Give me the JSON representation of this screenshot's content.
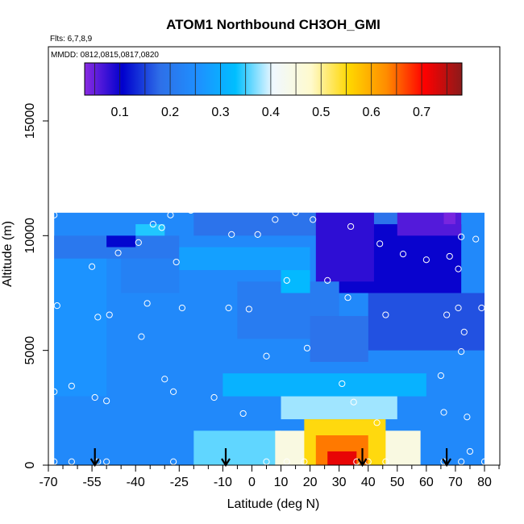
{
  "chart_data": {
    "type": "heatmap",
    "title": "ATOM1 Northbound CH3OH_GMI",
    "subtitle": "Flts: 6,7,8,9",
    "mmdd": "MMDD: 0812,0815,0817,0820",
    "xlabel": "Latitude (deg N)",
    "ylabel": "Altitude (m)",
    "xlim": [
      -70,
      85
    ],
    "ylim": [
      0,
      17500
    ],
    "x_ticks": [
      -70,
      -55,
      -40,
      -25,
      -10,
      0,
      10,
      20,
      30,
      40,
      50,
      60,
      70,
      80
    ],
    "x_tick_labels": [
      "-70",
      "-55",
      "-40",
      "-25",
      "-10",
      "0",
      "10",
      "20",
      "30",
      "40",
      "50",
      "60",
      "70",
      "80"
    ],
    "x_minor_ticks": [
      -65,
      -60,
      -50,
      -45,
      -35,
      -30,
      -20,
      -15,
      -5,
      5,
      15,
      25,
      35,
      45,
      55,
      65,
      75,
      85
    ],
    "y_ticks": [
      0,
      5000,
      10000,
      15000
    ],
    "y_tick_labels": [
      "0",
      "5000",
      "10000",
      "15000"
    ],
    "colorbar": {
      "range": [
        0.03,
        0.78
      ],
      "ticks": [
        0.1,
        0.2,
        0.3,
        0.4,
        0.5,
        0.6,
        0.7
      ],
      "tick_labels": [
        "0.1",
        "0.2",
        "0.3",
        "0.4",
        "0.5",
        "0.6",
        "0.7"
      ],
      "colors": [
        "#8a2be2",
        "#0000cd",
        "#2e6fe8",
        "#1e90ff",
        "#00bfff",
        "#f0f8ff",
        "#fffacd",
        "#ffd700",
        "#ff8c00",
        "#ff0000",
        "#8b1a1a"
      ]
    },
    "data_extent": {
      "x": [
        -68,
        80
      ],
      "y": [
        0,
        11000
      ]
    },
    "regions": [
      {
        "x": [
          -68,
          80
        ],
        "y": [
          0,
          11000
        ],
        "value": 0.24
      },
      {
        "x": [
          -20,
          70
        ],
        "y": [
          10000,
          11000
        ],
        "value": 0.19
      },
      {
        "x": [
          -68,
          -25
        ],
        "y": [
          9000,
          10000
        ],
        "value": 0.2
      },
      {
        "x": [
          -50,
          -40
        ],
        "y": [
          9500,
          10000
        ],
        "value": 0.11
      },
      {
        "x": [
          -40,
          -30
        ],
        "y": [
          10000,
          10500
        ],
        "value": 0.34
      },
      {
        "x": [
          -45,
          -25
        ],
        "y": [
          7500,
          9000
        ],
        "value": 0.22
      },
      {
        "x": [
          -25,
          20
        ],
        "y": [
          8500,
          9500
        ],
        "value": 0.28
      },
      {
        "x": [
          -5,
          30
        ],
        "y": [
          5500,
          8000
        ],
        "value": 0.21
      },
      {
        "x": [
          10,
          20
        ],
        "y": [
          7500,
          8500
        ],
        "value": 0.32
      },
      {
        "x": [
          30,
          72
        ],
        "y": [
          7500,
          10500
        ],
        "value": 0.1
      },
      {
        "x": [
          22,
          42
        ],
        "y": [
          8000,
          11000
        ],
        "value": 0.08
      },
      {
        "x": [
          50,
          72
        ],
        "y": [
          10000,
          11000
        ],
        "value": 0.06
      },
      {
        "x": [
          66,
          70
        ],
        "y": [
          10500,
          11000
        ],
        "value": 0.04
      },
      {
        "x": [
          40,
          80
        ],
        "y": [
          5000,
          7500
        ],
        "value": 0.16
      },
      {
        "x": [
          20,
          40
        ],
        "y": [
          4500,
          6500
        ],
        "value": 0.19
      },
      {
        "x": [
          -68,
          -50
        ],
        "y": [
          3000,
          9000
        ],
        "value": 0.26
      },
      {
        "x": [
          -10,
          60
        ],
        "y": [
          3000,
          4000
        ],
        "value": 0.31
      },
      {
        "x": [
          10,
          50
        ],
        "y": [
          2000,
          3000
        ],
        "value": 0.38
      },
      {
        "x": [
          -20,
          10
        ],
        "y": [
          0,
          1500
        ],
        "value": 0.36
      },
      {
        "x": [
          8,
          58
        ],
        "y": [
          0,
          1500
        ],
        "value": 0.45
      },
      {
        "x": [
          18,
          46
        ],
        "y": [
          0,
          2000
        ],
        "value": 0.55
      },
      {
        "x": [
          22,
          40
        ],
        "y": [
          0,
          1300
        ],
        "value": 0.64
      },
      {
        "x": [
          26,
          36
        ],
        "y": [
          0,
          600
        ],
        "value": 0.72
      }
    ],
    "points": [
      {
        "x": -68,
        "y": 10900
      },
      {
        "x": -67,
        "y": 6950
      },
      {
        "x": -68,
        "y": 3200
      },
      {
        "x": -62,
        "y": 3450
      },
      {
        "x": -68,
        "y": 150
      },
      {
        "x": -62,
        "y": 150
      },
      {
        "x": -55,
        "y": 8650
      },
      {
        "x": -53,
        "y": 6450
      },
      {
        "x": -49,
        "y": 6550
      },
      {
        "x": -54,
        "y": 2950
      },
      {
        "x": -50,
        "y": 2800
      },
      {
        "x": -53,
        "y": 150
      },
      {
        "x": -50,
        "y": 150
      },
      {
        "x": -46,
        "y": 9250
      },
      {
        "x": -39,
        "y": 9700
      },
      {
        "x": -38,
        "y": 5600
      },
      {
        "x": -36,
        "y": 7050
      },
      {
        "x": -34,
        "y": 10500
      },
      {
        "x": -31,
        "y": 10350
      },
      {
        "x": -27,
        "y": 3200
      },
      {
        "x": -27,
        "y": 150
      },
      {
        "x": -30,
        "y": 3750
      },
      {
        "x": -28,
        "y": 10900
      },
      {
        "x": -26,
        "y": 8850
      },
      {
        "x": -24,
        "y": 6850
      },
      {
        "x": -21,
        "y": 11100
      },
      {
        "x": -16,
        "y": 11250
      },
      {
        "x": -13,
        "y": 2950
      },
      {
        "x": -7,
        "y": 10050
      },
      {
        "x": -8,
        "y": 6850
      },
      {
        "x": -3,
        "y": 2250
      },
      {
        "x": -1,
        "y": 6800
      },
      {
        "x": 2,
        "y": 10050
      },
      {
        "x": 5,
        "y": 4750
      },
      {
        "x": 8,
        "y": 10700
      },
      {
        "x": 12,
        "y": 8050
      },
      {
        "x": 15,
        "y": 11000
      },
      {
        "x": 19,
        "y": 5100
      },
      {
        "x": 21,
        "y": 10700
      },
      {
        "x": 26,
        "y": 8050
      },
      {
        "x": 33,
        "y": 7300
      },
      {
        "x": 31,
        "y": 3550
      },
      {
        "x": 35,
        "y": 2750
      },
      {
        "x": 34,
        "y": 10400
      },
      {
        "x": 43,
        "y": 1850
      },
      {
        "x": 46,
        "y": 6550
      },
      {
        "x": 44,
        "y": 9650
      },
      {
        "x": 52,
        "y": 9200
      },
      {
        "x": 60,
        "y": 8950
      },
      {
        "x": 65,
        "y": 3900
      },
      {
        "x": 66,
        "y": 2300
      },
      {
        "x": 67,
        "y": 6550
      },
      {
        "x": 68,
        "y": 9100
      },
      {
        "x": 70,
        "y": 11200
      },
      {
        "x": 71,
        "y": 8550
      },
      {
        "x": 71,
        "y": 6850
      },
      {
        "x": 73,
        "y": 5800
      },
      {
        "x": 72,
        "y": 4950
      },
      {
        "x": 74,
        "y": 2100
      },
      {
        "x": 75,
        "y": 600
      },
      {
        "x": 72,
        "y": 9950
      },
      {
        "x": 77,
        "y": 9850
      },
      {
        "x": 79,
        "y": 6850
      },
      {
        "x": 80,
        "y": 150
      },
      {
        "x": 72,
        "y": 150
      },
      {
        "x": 66,
        "y": 150
      },
      {
        "x": 12,
        "y": 150
      },
      {
        "x": 18,
        "y": 150
      },
      {
        "x": 36,
        "y": 150
      },
      {
        "x": 40,
        "y": 150
      },
      {
        "x": 46,
        "y": 150
      },
      {
        "x": 5,
        "y": 150
      }
    ],
    "arrows": [
      {
        "x": -54
      },
      {
        "x": -9
      },
      {
        "x": 38
      },
      {
        "x": 67
      }
    ]
  }
}
